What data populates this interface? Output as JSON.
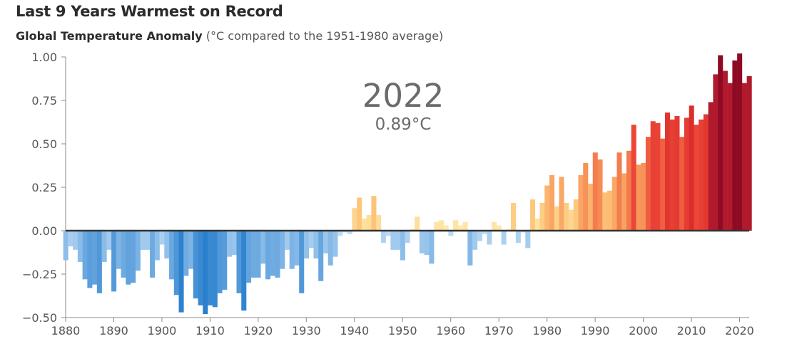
{
  "title": "Last 9 Years Warmest on Record",
  "subtitle_strong": "Global Temperature Anomaly",
  "subtitle_rest": " (°C compared to the 1951-1980 average)",
  "highlight": {
    "year": "2022",
    "value": "0.89°C"
  },
  "chart_data": {
    "type": "bar",
    "title": "Last 9 Years Warmest on Record",
    "subtitle": "Global Temperature Anomaly (°C compared to the 1951-1980 average)",
    "xlabel": "",
    "ylabel": "",
    "xlim": [
      1880,
      2022
    ],
    "ylim": [
      -0.5,
      1.0
    ],
    "yticks": [
      "1.00",
      "0.75",
      "0.50",
      "0.25",
      "0.00",
      "−0.25",
      "−0.50"
    ],
    "ytick_values": [
      1.0,
      0.75,
      0.5,
      0.25,
      0.0,
      -0.25,
      -0.5
    ],
    "xticks": [
      1880,
      1890,
      1900,
      1910,
      1920,
      1930,
      1940,
      1950,
      1960,
      1970,
      1980,
      1990,
      2000,
      2010,
      2020
    ],
    "grid": false,
    "color_scale": "blue for negative anomalies, yellow-orange-red for positive; last 9 years dark red",
    "years": [
      1880,
      1881,
      1882,
      1883,
      1884,
      1885,
      1886,
      1887,
      1888,
      1889,
      1890,
      1891,
      1892,
      1893,
      1894,
      1895,
      1896,
      1897,
      1898,
      1899,
      1900,
      1901,
      1902,
      1903,
      1904,
      1905,
      1906,
      1907,
      1908,
      1909,
      1910,
      1911,
      1912,
      1913,
      1914,
      1915,
      1916,
      1917,
      1918,
      1919,
      1920,
      1921,
      1922,
      1923,
      1924,
      1925,
      1926,
      1927,
      1928,
      1929,
      1930,
      1931,
      1932,
      1933,
      1934,
      1935,
      1936,
      1937,
      1938,
      1939,
      1940,
      1941,
      1942,
      1943,
      1944,
      1945,
      1946,
      1947,
      1948,
      1949,
      1950,
      1951,
      1952,
      1953,
      1954,
      1955,
      1956,
      1957,
      1958,
      1959,
      1960,
      1961,
      1962,
      1963,
      1964,
      1965,
      1966,
      1967,
      1968,
      1969,
      1970,
      1971,
      1972,
      1973,
      1974,
      1975,
      1976,
      1977,
      1978,
      1979,
      1980,
      1981,
      1982,
      1983,
      1984,
      1985,
      1986,
      1987,
      1988,
      1989,
      1990,
      1991,
      1992,
      1993,
      1994,
      1995,
      1996,
      1997,
      1998,
      1999,
      2000,
      2001,
      2002,
      2003,
      2004,
      2005,
      2006,
      2007,
      2008,
      2009,
      2010,
      2011,
      2012,
      2013,
      2014,
      2015,
      2016,
      2017,
      2018,
      2019,
      2020,
      2021,
      2022
    ],
    "values": [
      -0.17,
      -0.09,
      -0.11,
      -0.18,
      -0.28,
      -0.33,
      -0.31,
      -0.36,
      -0.18,
      -0.11,
      -0.35,
      -0.22,
      -0.27,
      -0.31,
      -0.3,
      -0.23,
      -0.11,
      -0.11,
      -0.27,
      -0.17,
      -0.08,
      -0.16,
      -0.28,
      -0.37,
      -0.47,
      -0.26,
      -0.22,
      -0.39,
      -0.43,
      -0.48,
      -0.43,
      -0.44,
      -0.36,
      -0.34,
      -0.15,
      -0.14,
      -0.36,
      -0.46,
      -0.3,
      -0.27,
      -0.27,
      -0.19,
      -0.28,
      -0.26,
      -0.27,
      -0.22,
      -0.11,
      -0.22,
      -0.2,
      -0.36,
      -0.16,
      -0.1,
      -0.16,
      -0.29,
      -0.13,
      -0.2,
      -0.15,
      -0.03,
      -0.01,
      -0.02,
      0.13,
      0.19,
      0.07,
      0.09,
      0.2,
      0.09,
      -0.07,
      -0.03,
      -0.11,
      -0.11,
      -0.17,
      -0.07,
      0.01,
      0.08,
      -0.13,
      -0.14,
      -0.19,
      0.05,
      0.06,
      0.03,
      -0.03,
      0.06,
      0.03,
      0.05,
      -0.2,
      -0.11,
      -0.06,
      -0.02,
      -0.08,
      0.05,
      0.03,
      -0.08,
      0.01,
      0.16,
      -0.07,
      -0.01,
      -0.1,
      0.18,
      0.07,
      0.16,
      0.26,
      0.32,
      0.14,
      0.31,
      0.16,
      0.12,
      0.18,
      0.32,
      0.39,
      0.27,
      0.45,
      0.41,
      0.22,
      0.23,
      0.31,
      0.45,
      0.33,
      0.46,
      0.61,
      0.38,
      0.39,
      0.54,
      0.63,
      0.62,
      0.53,
      0.68,
      0.64,
      0.66,
      0.54,
      0.65,
      0.72,
      0.61,
      0.64,
      0.67,
      0.74,
      0.9,
      1.01,
      0.92,
      0.85,
      0.98,
      1.02,
      0.85,
      0.89
    ]
  }
}
